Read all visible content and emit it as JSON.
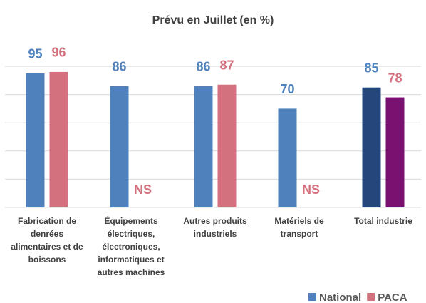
{
  "chart_data": {
    "type": "bar",
    "title": "Prévu en Juillet (en %)",
    "categories": [
      "Fabrication de denrées alimentaires et de boissons",
      "Équipements électriques, électroniques, informatiques et autres machines",
      "Autres produits industriels",
      "Matériels de transport",
      "Total industrie"
    ],
    "series": [
      {
        "name": "National",
        "color": "#4f81bd",
        "point_colors": [
          "#4f81bd",
          "#4f81bd",
          "#4f81bd",
          "#4f81bd",
          "#24467a"
        ],
        "values": [
          95,
          86,
          86,
          70,
          85
        ]
      },
      {
        "name": "PACA",
        "color": "#d4717f",
        "point_colors": [
          "#d4717f",
          "#d4717f",
          "#d4717f",
          "#d4717f",
          "#7a1070"
        ],
        "values": [
          96,
          null,
          87,
          null,
          78
        ],
        "value_labels": [
          "96",
          "NS",
          "87",
          "NS",
          "78"
        ]
      }
    ],
    "ylim": [
      0,
      100
    ],
    "yticks": [
      0,
      20,
      40,
      60,
      80,
      100
    ],
    "grid": true,
    "ytick_labels": false,
    "legend": "bottom-right"
  }
}
